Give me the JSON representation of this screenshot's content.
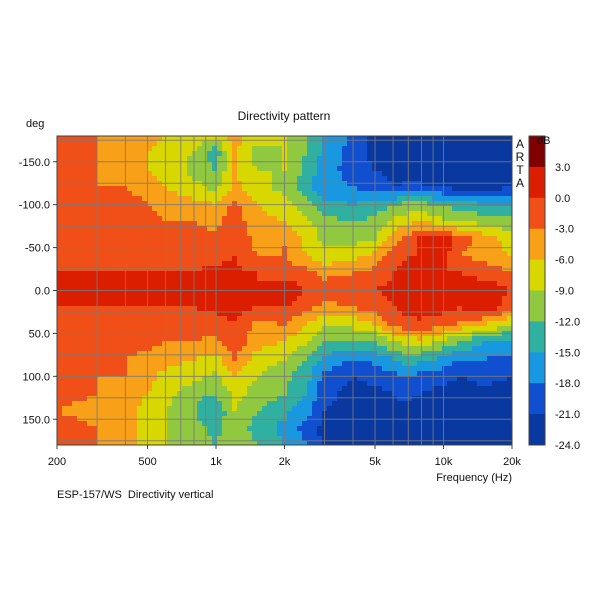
{
  "chart_data": {
    "type": "heatmap",
    "title": "Directivity pattern",
    "xlabel": "Frequency (Hz)",
    "ylabel": "deg",
    "x_scale": "log",
    "xlim": [
      200,
      20000
    ],
    "ylim": [
      -180,
      180
    ],
    "y_inverted": true,
    "x_ticks": [
      {
        "value": 200,
        "label": "200"
      },
      {
        "value": 500,
        "label": "500"
      },
      {
        "value": 1000,
        "label": "1k"
      },
      {
        "value": 2000,
        "label": "2k"
      },
      {
        "value": 5000,
        "label": "5k"
      },
      {
        "value": 10000,
        "label": "10k"
      },
      {
        "value": 20000,
        "label": "20k"
      }
    ],
    "x_minor_gridlines": [
      300,
      400,
      600,
      700,
      800,
      900,
      3000,
      4000,
      6000,
      7000,
      8000,
      9000
    ],
    "y_ticks": [
      {
        "value": -150,
        "label": "-150.0"
      },
      {
        "value": -100,
        "label": "-100.0"
      },
      {
        "value": -50,
        "label": "-50.0"
      },
      {
        "value": 0,
        "label": "0.0"
      },
      {
        "value": 50,
        "label": "50.0"
      },
      {
        "value": 100,
        "label": "100.0"
      },
      {
        "value": 150,
        "label": "150.0"
      }
    ],
    "y_minor_gridlines": [
      -175,
      -125,
      -75,
      -25,
      25,
      75,
      125,
      175
    ],
    "grid": true,
    "watermark": "ARTA",
    "colorbar": {
      "unit": "dB",
      "position": "right",
      "tick_labels": [
        "3.0",
        "0.0",
        "-3.0",
        "-6.0",
        "-9.0",
        "-12.0",
        "-15.0",
        "-18.0",
        "-21.0",
        "-24.0"
      ],
      "levels": [
        {
          "min": 3,
          "color": "#800000"
        },
        {
          "min": 0,
          "color": "#dc1e00"
        },
        {
          "min": -3,
          "color": "#f05018"
        },
        {
          "min": -6,
          "color": "#f8a018"
        },
        {
          "min": -9,
          "color": "#d8d800"
        },
        {
          "min": -12,
          "color": "#90c840"
        },
        {
          "min": -15,
          "color": "#30b0a0"
        },
        {
          "min": -18,
          "color": "#1898e0"
        },
        {
          "min": -21,
          "color": "#1050d0"
        },
        {
          "min": -24,
          "color": "#0838a0"
        }
      ]
    },
    "x_samples_hz": [
      200,
      300,
      400,
      500,
      600,
      800,
      1000,
      1200,
      1500,
      2000,
      2500,
      3000,
      4000,
      5000,
      6000,
      7000,
      8000,
      10000,
      12000,
      15000,
      20000
    ],
    "y_samples_deg": [
      -180,
      -160,
      -140,
      -120,
      -100,
      -80,
      -60,
      -40,
      -20,
      0,
      20,
      40,
      60,
      80,
      100,
      120,
      140,
      160,
      180
    ],
    "z_db": [
      [
        -2,
        -3,
        -4,
        -5,
        -6,
        -8,
        -8,
        -5,
        -8,
        -9,
        -12,
        -15,
        -19,
        -22,
        -23,
        -23,
        -24,
        -24,
        -24,
        -23,
        -23
      ],
      [
        -2,
        -3,
        -4,
        -6,
        -8,
        -9,
        -14,
        -5,
        -10,
        -9,
        -12,
        -16,
        -19,
        -22,
        -23,
        -23,
        -24,
        -24,
        -24,
        -24,
        -23
      ],
      [
        -2,
        -3,
        -4,
        -6,
        -7,
        -10,
        -12,
        -6,
        -9,
        -9,
        -13,
        -17,
        -19,
        -21,
        -22,
        -23,
        -24,
        -24,
        -23,
        -23,
        -23
      ],
      [
        -2,
        -3,
        -3,
        -4,
        -6,
        -8,
        -10,
        -5,
        -8,
        -10,
        -14,
        -17,
        -18,
        -19,
        -21,
        -20,
        -20,
        -21,
        -22,
        -22,
        -21
      ],
      [
        -1,
        -2,
        -2,
        -3,
        -4,
        -5,
        -6,
        -2,
        -6,
        -8,
        -11,
        -14,
        -15,
        -14,
        -12,
        -11,
        -11,
        -13,
        -13,
        -15,
        -16
      ],
      [
        -1,
        -2,
        -2,
        -2,
        -3,
        -3,
        -4,
        -1,
        -5,
        -6,
        -8,
        -11,
        -12,
        -11,
        -8,
        -7,
        -6,
        -8,
        -9,
        -10,
        -11
      ],
      [
        -1,
        -1,
        -1,
        -1,
        -2,
        -2,
        -2,
        0,
        -4,
        -3,
        -7,
        -10,
        -10,
        -9,
        -4,
        -2,
        2,
        2,
        -2,
        -4,
        -8
      ],
      [
        0,
        -1,
        -1,
        -1,
        -1,
        -1,
        -1,
        0,
        -3,
        -3,
        -6,
        -8,
        -7,
        -5,
        -1,
        0,
        0,
        1,
        -3,
        -4,
        -6
      ],
      [
        0,
        0,
        0,
        0,
        0,
        0,
        1,
        1,
        0,
        -1,
        -2,
        -4,
        -3,
        -2,
        0,
        1,
        1,
        0,
        0,
        -1,
        -3
      ],
      [
        0,
        0,
        0,
        0,
        0,
        0,
        1,
        1,
        0,
        2,
        0,
        -1,
        -1,
        0,
        1,
        3,
        3,
        1,
        1,
        2,
        0
      ],
      [
        0,
        0,
        0,
        0,
        0,
        0,
        1,
        1,
        0,
        0,
        -2,
        -4,
        -3,
        -2,
        0,
        1,
        2,
        1,
        0,
        2,
        -2
      ],
      [
        -1,
        -1,
        -1,
        -1,
        -2,
        -2,
        -2,
        0,
        -4,
        -3,
        -6,
        -9,
        -8,
        -6,
        -2,
        -1,
        -1,
        -2,
        -4,
        -6,
        -9
      ],
      [
        -1,
        -1,
        -2,
        -2,
        -3,
        -3,
        -4,
        0,
        -5,
        -6,
        -9,
        -12,
        -13,
        -12,
        -9,
        -8,
        -7,
        -10,
        -12,
        -15,
        -16
      ],
      [
        -2,
        -2,
        -3,
        -4,
        -5,
        -6,
        -7,
        -3,
        -7,
        -9,
        -12,
        -16,
        -18,
        -17,
        -15,
        -13,
        -14,
        -16,
        -18,
        -18,
        -19
      ],
      [
        -2,
        -3,
        -3,
        -5,
        -7,
        -8,
        -10,
        -6,
        -9,
        -11,
        -14,
        -19,
        -21,
        -20,
        -19,
        -18,
        -19,
        -20,
        -21,
        -20,
        -21
      ],
      [
        -2,
        -3,
        -4,
        -6,
        -8,
        -11,
        -12,
        -8,
        -10,
        -12,
        -15,
        -20,
        -22,
        -22,
        -21,
        -20,
        -21,
        -22,
        -22,
        -22,
        -22
      ],
      [
        -3,
        -4,
        -5,
        -7,
        -9,
        -12,
        -15,
        -9,
        -12,
        -14,
        -17,
        -21,
        -23,
        -23,
        -22,
        -22,
        -23,
        -23,
        -23,
        -23,
        -23
      ],
      [
        -2,
        -3,
        -5,
        -7,
        -9,
        -11,
        -13,
        -10,
        -13,
        -16,
        -19,
        -22,
        -23,
        -23,
        -23,
        -23,
        -23,
        -23,
        -23,
        -23,
        -23
      ],
      [
        -2,
        -3,
        -5,
        -7,
        -9,
        -11,
        -12,
        -10,
        -12,
        -15,
        -18,
        -22,
        -23,
        -23,
        -23,
        -23,
        -23,
        -23,
        -23,
        -23,
        -23
      ]
    ]
  },
  "footer": {
    "caption": "ESP-157/WS  Directivity vertical"
  }
}
